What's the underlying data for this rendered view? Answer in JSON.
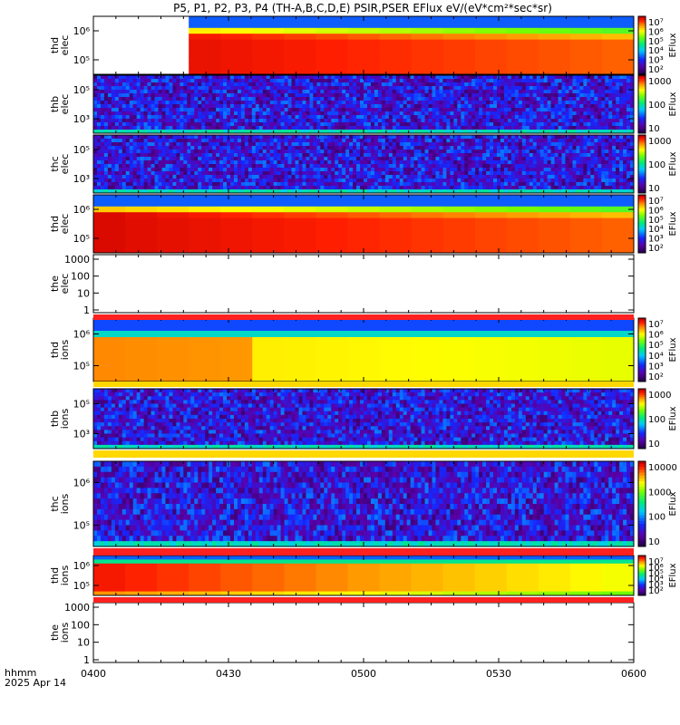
{
  "title": "P5, P1, P2, P3, P4 (TH-A,B,C,D,E) PSIR,PSER EFlux eV/(eV*cm²*sec*sr)",
  "footer": {
    "time_label": "hhmm",
    "date": "2025 Apr 14"
  },
  "chart_data": {
    "type": "heatmap",
    "x_ticks": [
      "0400",
      "0430",
      "0500",
      "0530",
      "0600"
    ],
    "panels": [
      {
        "label": [
          "thd",
          "elec"
        ],
        "yticks": [
          "10⁶",
          "10⁵"
        ],
        "cbar_ticks": [
          "10⁷",
          "10⁶",
          "10⁵",
          "10⁴",
          "10³",
          "10²"
        ],
        "cbar_label": "EFlux",
        "style": "thd",
        "blank_start": 0.166
      },
      {
        "label": [
          "thb",
          "elec"
        ],
        "yticks": [
          "10⁵",
          "10³"
        ],
        "cbar_ticks": [
          "1000",
          "100",
          "10"
        ],
        "cbar_label": "EFlux",
        "style": "noise"
      },
      {
        "label": [
          "thc",
          "elec"
        ],
        "yticks": [
          "10⁵",
          "10³"
        ],
        "cbar_ticks": [
          "1000",
          "100",
          "10"
        ],
        "cbar_label": "EFlux",
        "style": "noise"
      },
      {
        "label": [
          "thd",
          "elec"
        ],
        "yticks": [
          "10⁶",
          "10⁵"
        ],
        "cbar_ticks": [
          "10⁷",
          "10⁶",
          "10⁵",
          "10⁴",
          "10³",
          "10²"
        ],
        "cbar_label": "EFlux",
        "style": "thd"
      },
      {
        "label": [
          "the",
          "elec"
        ],
        "yticks": [
          "1000",
          "100",
          "10",
          "1"
        ],
        "style": "empty"
      },
      {
        "label": [
          "thd",
          "ions"
        ],
        "yticks": [
          "10⁶",
          "10⁵"
        ],
        "cbar_ticks": [
          "10⁷",
          "10⁶",
          "10⁵",
          "10⁴",
          "10³",
          "10²"
        ],
        "cbar_label": "EFlux",
        "style": "ionsA"
      },
      {
        "label": [
          "thb",
          "ions"
        ],
        "yticks": [
          "10⁵",
          "10³"
        ],
        "cbar_ticks": [
          "1000",
          "100",
          "10"
        ],
        "cbar_label": "EFlux",
        "style": "noise"
      },
      {
        "label": [
          "thc",
          "ions"
        ],
        "yticks": [
          "10⁶",
          "10⁵"
        ],
        "cbar_ticks": [
          "10000",
          "1000",
          "100",
          "10"
        ],
        "cbar_label": "EFlux",
        "style": "noise"
      },
      {
        "label": [
          "thd",
          "ions"
        ],
        "yticks": [
          "10⁶",
          "10⁵"
        ],
        "cbar_ticks": [
          "10⁷",
          "10⁶",
          "10⁵",
          "10⁴",
          "10³",
          "10²"
        ],
        "cbar_label": "EFlux",
        "style": "ionsB"
      },
      {
        "label": [
          "the",
          "ions"
        ],
        "yticks": [
          "1000",
          "100",
          "10",
          "1"
        ],
        "style": "empty"
      }
    ]
  }
}
